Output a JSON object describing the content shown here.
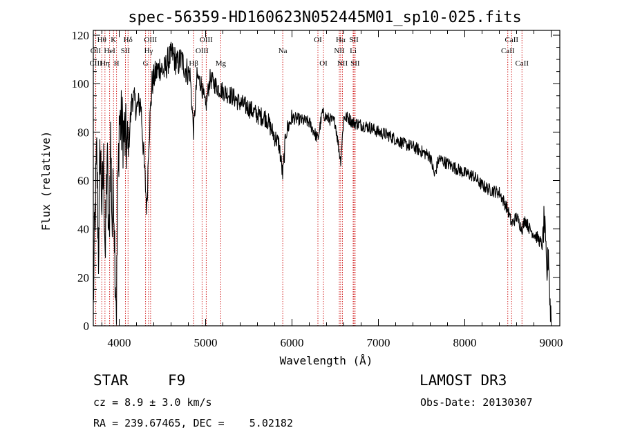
{
  "chart_data": {
    "type": "line",
    "title": "spec-56359-HD160623N052445M01_sp10-025.fits",
    "xlabel": "Wavelength (Å)",
    "ylabel": "Flux (relative)",
    "xlim": [
      3700,
      9100
    ],
    "ylim": [
      0,
      122
    ],
    "xticks": [
      4000,
      5000,
      6000,
      7000,
      8000,
      9000
    ],
    "yticks": [
      0,
      20,
      40,
      60,
      80,
      100,
      120
    ],
    "series": [
      {
        "name": "flux",
        "x": [
          3700,
          3720,
          3740,
          3760,
          3780,
          3800,
          3820,
          3840,
          3860,
          3880,
          3900,
          3920,
          3935,
          3950,
          3968,
          3985,
          4000,
          4050,
          4102,
          4150,
          4200,
          4250,
          4300,
          4320,
          4340,
          4380,
          4420,
          4470,
          4520,
          4570,
          4620,
          4670,
          4720,
          4770,
          4820,
          4861,
          4900,
          4950,
          5000,
          5050,
          5100,
          5150,
          5200,
          5300,
          5400,
          5500,
          5600,
          5700,
          5800,
          5850,
          5893,
          5930,
          6000,
          6100,
          6200,
          6300,
          6350,
          6400,
          6450,
          6500,
          6563,
          6600,
          6650,
          6700,
          6800,
          6900,
          7000,
          7100,
          7200,
          7300,
          7400,
          7500,
          7600,
          7650,
          7700,
          7800,
          7900,
          8000,
          8100,
          8200,
          8300,
          8400,
          8498,
          8542,
          8600,
          8662,
          8700,
          8750,
          8800,
          8850,
          8900,
          8920,
          8950,
          8970,
          8985,
          9000
        ],
        "y": [
          10,
          45,
          70,
          30,
          75,
          50,
          65,
          28,
          72,
          30,
          78,
          40,
          60,
          30,
          8,
          55,
          85,
          80,
          72,
          95,
          90,
          92,
          60,
          48,
          75,
          100,
          104,
          107,
          105,
          110,
          112,
          108,
          110,
          106,
          104,
          80,
          103,
          100,
          90,
          102,
          100,
          98,
          97,
          95,
          92,
          90,
          87,
          86,
          78,
          75,
          62,
          80,
          86,
          85,
          84,
          77,
          88,
          86,
          85,
          84,
          68,
          86,
          86,
          84,
          83,
          82,
          80,
          79,
          77,
          75,
          74,
          72,
          70,
          62,
          69,
          67,
          65,
          63,
          62,
          58,
          56,
          55,
          48,
          42,
          45,
          40,
          44,
          40,
          38,
          36,
          33,
          45,
          20,
          32,
          10,
          4
        ]
      }
    ],
    "spectral_lines": [
      {
        "label": "Hθ",
        "wavelength": 3798,
        "row": 1
      },
      {
        "label": "OII",
        "wavelength": 3727,
        "row": 2
      },
      {
        "label": "CIII",
        "wavelength": 3729,
        "row": 3
      },
      {
        "label": "HeI",
        "wavelength": 3889,
        "row": 2
      },
      {
        "label": "Hη",
        "wavelength": 3835,
        "row": 3
      },
      {
        "label": "K",
        "wavelength": 3934,
        "row": 1
      },
      {
        "label": "SII",
        "wavelength": 4072,
        "row": 2
      },
      {
        "label": "H",
        "wavelength": 3969,
        "row": 3
      },
      {
        "label": "Hδ",
        "wavelength": 4102,
        "row": 1
      },
      {
        "label": "OIII",
        "wavelength": 4363,
        "row": 1
      },
      {
        "label": "Hγ",
        "wavelength": 4340,
        "row": 2
      },
      {
        "label": "G",
        "wavelength": 4305,
        "row": 3
      },
      {
        "label": "OIII",
        "wavelength": 5007,
        "row": 1
      },
      {
        "label": "OIII",
        "wavelength": 4959,
        "row": 2
      },
      {
        "label": "Hβ",
        "wavelength": 4861,
        "row": 3
      },
      {
        "label": "Mg",
        "wavelength": 5175,
        "row": 3
      },
      {
        "label": "Na",
        "wavelength": 5893,
        "row": 2
      },
      {
        "label": "OI",
        "wavelength": 6300,
        "row": 1
      },
      {
        "label": "OI",
        "wavelength": 6364,
        "row": 3
      },
      {
        "label": "Hα",
        "wavelength": 6563,
        "row": 1
      },
      {
        "label": "NII",
        "wavelength": 6548,
        "row": 2
      },
      {
        "label": "NII",
        "wavelength": 6584,
        "row": 3
      },
      {
        "label": "SII",
        "wavelength": 6717,
        "row": 1
      },
      {
        "label": "Li",
        "wavelength": 6708,
        "row": 2
      },
      {
        "label": "SII",
        "wavelength": 6731,
        "row": 3
      },
      {
        "label": "CaII",
        "wavelength": 8542,
        "row": 1
      },
      {
        "label": "CaII",
        "wavelength": 8498,
        "row": 2
      },
      {
        "label": "CaII",
        "wavelength": 8662,
        "row": 3
      }
    ]
  },
  "info": {
    "object_class": "STAR",
    "subclass": "F9",
    "survey": "LAMOST DR3",
    "cz": "cz = 8.9 ± 3.0 km/s",
    "obs_date": "Obs-Date: 20130307",
    "coords": "RA = 239.67465, DEC =    5.02182"
  },
  "colors": {
    "axis": "#000000",
    "spectrum": "#000000",
    "line_marker": "#cc0000",
    "background": "#ffffff"
  }
}
